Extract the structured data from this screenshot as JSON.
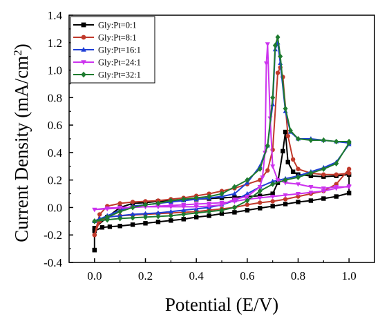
{
  "chart_data": {
    "type": "line",
    "title": "",
    "xlabel": "Potential (E/V)",
    "ylabel_parts": [
      "Current Density (mA/cm",
      "2",
      ")"
    ],
    "xlim": [
      -0.1,
      1.1
    ],
    "ylim": [
      -0.4,
      1.4
    ],
    "xticks": [
      0.0,
      0.2,
      0.4,
      0.6,
      0.8,
      1.0
    ],
    "yticks": [
      -0.4,
      -0.2,
      0.0,
      0.2,
      0.4,
      0.6,
      0.8,
      1.0,
      1.2,
      1.4
    ],
    "xtick_labels": [
      "0.0",
      "0.2",
      "0.4",
      "0.6",
      "0.8",
      "1.0"
    ],
    "ytick_labels": [
      "-0.4",
      "-0.2",
      "0.0",
      "0.2",
      "0.4",
      "0.6",
      "0.8",
      "1.0",
      "1.2",
      "1.4"
    ],
    "grid": false,
    "legend_position": "top-left",
    "series": [
      {
        "name": "Gly:Pt=0:1",
        "color": "#000000",
        "marker": "square",
        "x": [
          0.0,
          0.0,
          0.03,
          0.06,
          0.1,
          0.15,
          0.2,
          0.25,
          0.3,
          0.35,
          0.4,
          0.45,
          0.5,
          0.55,
          0.6,
          0.65,
          0.7,
          0.75,
          0.8,
          0.85,
          0.9,
          0.95,
          1.0,
          1.0,
          0.95,
          0.9,
          0.85,
          0.8,
          0.78,
          0.76,
          0.75,
          0.74,
          0.72,
          0.7,
          0.65,
          0.6,
          0.55,
          0.5,
          0.45,
          0.4,
          0.35,
          0.3,
          0.25,
          0.2,
          0.15,
          0.1,
          0.05,
          0.0,
          0.0
        ],
        "y": [
          -0.31,
          -0.17,
          -0.145,
          -0.14,
          -0.135,
          -0.125,
          -0.115,
          -0.105,
          -0.095,
          -0.085,
          -0.07,
          -0.06,
          -0.045,
          -0.035,
          -0.02,
          -0.005,
          0.01,
          0.025,
          0.04,
          0.05,
          0.065,
          0.08,
          0.105,
          0.24,
          0.23,
          0.225,
          0.23,
          0.24,
          0.26,
          0.33,
          0.55,
          0.41,
          0.18,
          0.1,
          0.085,
          0.08,
          0.075,
          0.07,
          0.065,
          0.06,
          0.055,
          0.05,
          0.045,
          0.035,
          0.03,
          0.0,
          -0.07,
          -0.15,
          -0.31
        ]
      },
      {
        "name": "Gly:Pt=8:1",
        "color": "#c0392b",
        "marker": "circle",
        "x": [
          0.0,
          0.02,
          0.05,
          0.1,
          0.15,
          0.2,
          0.25,
          0.3,
          0.35,
          0.4,
          0.45,
          0.5,
          0.55,
          0.6,
          0.65,
          0.7,
          0.75,
          0.8,
          0.85,
          0.9,
          0.95,
          1.0,
          1.0,
          0.95,
          0.9,
          0.85,
          0.8,
          0.78,
          0.76,
          0.74,
          0.73,
          0.72,
          0.7,
          0.68,
          0.65,
          0.6,
          0.55,
          0.5,
          0.45,
          0.4,
          0.35,
          0.3,
          0.25,
          0.2,
          0.15,
          0.1,
          0.05,
          0.02,
          0.0
        ],
        "y": [
          -0.2,
          -0.1,
          -0.07,
          -0.06,
          -0.055,
          -0.05,
          -0.045,
          -0.04,
          -0.035,
          -0.03,
          -0.02,
          -0.01,
          0.0,
          0.02,
          0.035,
          0.045,
          0.06,
          0.08,
          0.1,
          0.12,
          0.17,
          0.28,
          0.25,
          0.24,
          0.24,
          0.25,
          0.28,
          0.35,
          0.52,
          0.95,
          1.02,
          0.98,
          0.42,
          0.27,
          0.2,
          0.17,
          0.14,
          0.12,
          0.1,
          0.085,
          0.07,
          0.06,
          0.05,
          0.045,
          0.04,
          0.03,
          0.01,
          -0.05,
          -0.2
        ]
      },
      {
        "name": "Gly:Pt=16:1",
        "color": "#1f3fd6",
        "marker": "triangle-up",
        "x": [
          0.0,
          0.02,
          0.05,
          0.1,
          0.15,
          0.2,
          0.25,
          0.3,
          0.35,
          0.4,
          0.45,
          0.5,
          0.55,
          0.6,
          0.65,
          0.7,
          0.75,
          0.8,
          0.85,
          0.9,
          0.95,
          1.0,
          1.0,
          0.95,
          0.9,
          0.85,
          0.8,
          0.77,
          0.75,
          0.73,
          0.72,
          0.71,
          0.7,
          0.68,
          0.65,
          0.6,
          0.55,
          0.5,
          0.45,
          0.4,
          0.35,
          0.3,
          0.25,
          0.2,
          0.15,
          0.1,
          0.05,
          0.0
        ],
        "y": [
          -0.1,
          -0.08,
          -0.07,
          -0.06,
          -0.05,
          -0.045,
          -0.04,
          -0.03,
          -0.02,
          -0.01,
          0.0,
          0.02,
          0.05,
          0.1,
          0.15,
          0.19,
          0.21,
          0.23,
          0.26,
          0.29,
          0.33,
          0.46,
          0.47,
          0.48,
          0.49,
          0.5,
          0.5,
          0.55,
          0.7,
          1.05,
          1.2,
          1.15,
          0.75,
          0.45,
          0.3,
          0.18,
          0.1,
          0.08,
          0.07,
          0.06,
          0.05,
          0.04,
          0.03,
          0.02,
          0.01,
          -0.02,
          -0.06,
          -0.1
        ]
      },
      {
        "name": "Gly:Pt=24:1",
        "color": "#cc33ee",
        "marker": "triangle-down",
        "x": [
          0.0,
          0.05,
          0.1,
          0.15,
          0.2,
          0.25,
          0.3,
          0.35,
          0.4,
          0.45,
          0.5,
          0.55,
          0.6,
          0.65,
          0.7,
          0.75,
          0.8,
          0.85,
          0.9,
          0.95,
          1.0,
          1.0,
          0.95,
          0.9,
          0.85,
          0.8,
          0.75,
          0.72,
          0.7,
          0.69,
          0.68,
          0.675,
          0.67,
          0.66,
          0.65,
          0.6,
          0.55,
          0.5,
          0.45,
          0.4,
          0.35,
          0.3,
          0.25,
          0.2,
          0.15,
          0.1,
          0.05,
          0.0
        ],
        "y": [
          -0.015,
          -0.01,
          -0.005,
          0.0,
          0.005,
          0.01,
          0.015,
          0.02,
          0.025,
          0.03,
          0.035,
          0.045,
          0.06,
          0.07,
          0.08,
          0.09,
          0.1,
          0.11,
          0.12,
          0.14,
          0.155,
          0.15,
          0.15,
          0.14,
          0.15,
          0.17,
          0.18,
          0.2,
          0.3,
          0.65,
          1.19,
          1.05,
          0.4,
          0.22,
          0.15,
          0.08,
          0.06,
          0.02,
          0.01,
          0.005,
          0.005,
          0.005,
          0.005,
          0.005,
          0.0,
          0.0,
          -0.005,
          -0.015
        ]
      },
      {
        "name": "Gly:Pt=32:1",
        "color": "#1e7b2f",
        "marker": "diamond",
        "x": [
          0.0,
          0.05,
          0.1,
          0.15,
          0.2,
          0.25,
          0.3,
          0.35,
          0.4,
          0.45,
          0.5,
          0.55,
          0.6,
          0.65,
          0.7,
          0.75,
          0.8,
          0.85,
          0.9,
          0.95,
          1.0,
          1.0,
          0.95,
          0.9,
          0.85,
          0.8,
          0.77,
          0.75,
          0.73,
          0.72,
          0.71,
          0.7,
          0.68,
          0.65,
          0.6,
          0.55,
          0.5,
          0.45,
          0.4,
          0.35,
          0.3,
          0.25,
          0.2,
          0.15,
          0.1,
          0.05,
          0.0
        ],
        "y": [
          -0.1,
          -0.09,
          -0.08,
          -0.075,
          -0.07,
          -0.065,
          -0.06,
          -0.05,
          -0.04,
          -0.03,
          -0.02,
          0.0,
          0.05,
          0.12,
          0.17,
          0.2,
          0.22,
          0.25,
          0.28,
          0.32,
          0.47,
          0.48,
          0.48,
          0.49,
          0.49,
          0.5,
          0.56,
          0.72,
          1.1,
          1.24,
          1.18,
          0.8,
          0.45,
          0.28,
          0.2,
          0.15,
          0.1,
          0.08,
          0.07,
          0.06,
          0.05,
          0.03,
          0.02,
          0.0,
          -0.03,
          -0.07,
          -0.1
        ]
      }
    ]
  }
}
